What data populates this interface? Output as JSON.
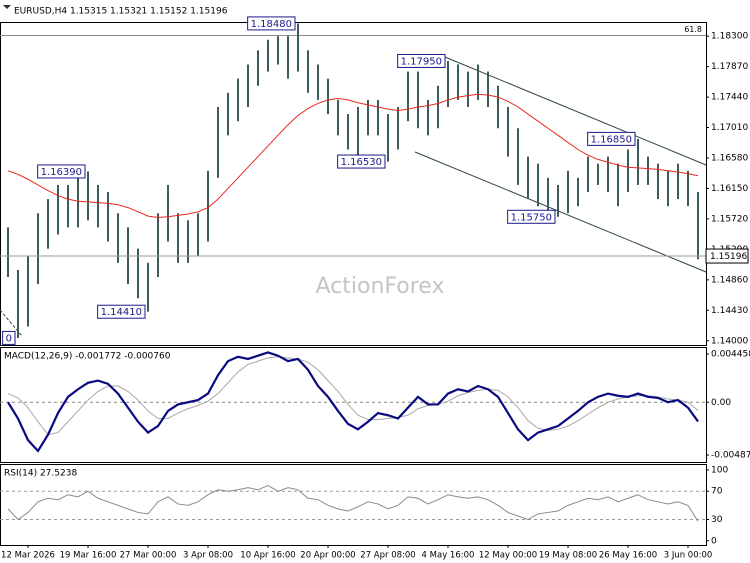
{
  "chart_data": [
    {
      "type": "ohlc",
      "title": "EURUSD,H4  1.15315 1.15321 1.15152 1.15196",
      "watermark": "ActionForex",
      "categories": [
        null,
        null,
        "12 Mar 2026",
        null,
        null,
        null,
        null,
        null,
        "19 Mar 16:00",
        null,
        null,
        null,
        null,
        null,
        "27 Mar 00:00",
        null,
        null,
        null,
        null,
        null,
        "3 Apr 08:00",
        null,
        null,
        null,
        null,
        null,
        "10 Apr 16:00",
        null,
        null,
        null,
        null,
        null,
        "20 Apr 00:00",
        null,
        null,
        null,
        null,
        null,
        "27 Apr 08:00",
        null,
        null,
        null,
        null,
        null,
        "4 May 16:00",
        null,
        null,
        null,
        null,
        null,
        "12 May 00:00",
        null,
        null,
        null,
        null,
        null,
        "19 May 08:00",
        null,
        null,
        null,
        null,
        null,
        "26 May 16:00",
        null,
        null,
        null,
        null,
        null,
        "3 Jun 00:00",
        null
      ],
      "high": [
        1.156,
        1.15,
        1.152,
        1.158,
        1.16,
        1.162,
        1.162,
        1.163,
        1.1639,
        1.162,
        1.161,
        1.158,
        1.156,
        1.153,
        1.151,
        1.158,
        1.162,
        1.158,
        1.157,
        1.158,
        1.164,
        1.173,
        1.175,
        1.177,
        1.179,
        1.181,
        1.1825,
        1.183,
        1.183,
        1.1848,
        1.181,
        1.179,
        1.177,
        1.174,
        1.172,
        1.173,
        1.174,
        1.174,
        1.172,
        1.173,
        1.178,
        1.178,
        1.174,
        1.176,
        1.1795,
        1.179,
        1.178,
        1.179,
        1.178,
        1.176,
        1.173,
        1.17,
        1.166,
        1.165,
        1.163,
        1.162,
        1.164,
        1.163,
        1.166,
        1.165,
        1.166,
        1.165,
        1.167,
        1.1685,
        1.166,
        1.165,
        1.164,
        1.165,
        1.164,
        1.161
      ],
      "low": [
        1.149,
        1.1404,
        1.142,
        1.148,
        1.153,
        1.155,
        1.156,
        1.156,
        1.157,
        1.156,
        1.154,
        1.151,
        1.148,
        1.146,
        1.1441,
        1.149,
        1.154,
        1.151,
        1.151,
        1.152,
        1.154,
        1.163,
        1.169,
        1.171,
        1.173,
        1.176,
        1.178,
        1.179,
        1.177,
        1.178,
        1.175,
        1.174,
        1.172,
        1.169,
        1.167,
        1.166,
        1.169,
        1.169,
        1.1653,
        1.167,
        1.171,
        1.17,
        1.169,
        1.17,
        1.173,
        1.174,
        1.173,
        1.174,
        1.173,
        1.17,
        1.166,
        1.162,
        1.16,
        1.159,
        1.158,
        1.1575,
        1.158,
        1.159,
        1.161,
        1.162,
        1.161,
        1.159,
        1.161,
        1.162,
        1.162,
        1.16,
        1.159,
        1.16,
        1.159,
        1.1515
      ],
      "color": "#3d5b5b",
      "ma": {
        "color": "#e8281e",
        "values": [
          1.164,
          1.1635,
          1.1628,
          1.162,
          1.1612,
          1.1605,
          1.16,
          1.1597,
          1.1596,
          1.1595,
          1.1594,
          1.1592,
          1.1588,
          1.1582,
          1.1576,
          1.1574,
          1.1575,
          1.1577,
          1.1579,
          1.1582,
          1.1588,
          1.16,
          1.1615,
          1.163,
          1.1645,
          1.166,
          1.1675,
          1.169,
          1.1705,
          1.1718,
          1.1728,
          1.1735,
          1.174,
          1.1742,
          1.174,
          1.1736,
          1.1733,
          1.173,
          1.1727,
          1.1725,
          1.1727,
          1.173,
          1.1732,
          1.1735,
          1.174,
          1.1744,
          1.1746,
          1.1748,
          1.1747,
          1.1744,
          1.1738,
          1.173,
          1.172,
          1.171,
          1.17,
          1.169,
          1.168,
          1.167,
          1.1662,
          1.1656,
          1.1652,
          1.1648,
          1.1645,
          1.1644,
          1.1643,
          1.1642,
          1.164,
          1.1638,
          1.1636,
          1.1633
        ]
      },
      "ylim": [
        1.1394,
        1.185
      ],
      "yticks": [
        {
          "value": 1.183,
          "label": "1.18300"
        },
        {
          "value": 1.1787,
          "label": "1.17870"
        },
        {
          "value": 1.1744,
          "label": "1.17440"
        },
        {
          "value": 1.1701,
          "label": "1.17010"
        },
        {
          "value": 1.1658,
          "label": "1.16580"
        },
        {
          "value": 1.1615,
          "label": "1.16150"
        },
        {
          "value": 1.1572,
          "label": "1.15720"
        },
        {
          "value": 1.1529,
          "label": "1.15290"
        },
        {
          "value": 1.1486,
          "label": "1.14860"
        },
        {
          "value": 1.1443,
          "label": "1.14430"
        },
        {
          "value": 1.14,
          "label": "1.14000"
        }
      ],
      "annotations": [
        {
          "value": 1.1404,
          "label": "0"
        },
        {
          "value": 1.1639,
          "label": "1.16390"
        },
        {
          "value": 1.1441,
          "label": "1.14410"
        },
        {
          "value": 1.1848,
          "label": "1.18480"
        },
        {
          "value": 1.1653,
          "label": "1.16530"
        },
        {
          "value": 1.1795,
          "label": "1.17950"
        },
        {
          "value": 1.1575,
          "label": "1.15750"
        },
        {
          "value": 1.1685,
          "label": "1.16850"
        }
      ],
      "fib_label": "61.8",
      "fib_price": 1.1831,
      "last_price": 1.15196
    },
    {
      "type": "macd",
      "title": "MACD(12,26,9) -0.001772 -0.000760",
      "macd": {
        "color": "#0a0a80",
        "values": [
          0.0,
          -0.0015,
          -0.0035,
          -0.0045,
          -0.003,
          -0.001,
          0.0005,
          0.0012,
          0.0018,
          0.002,
          0.0017,
          0.0008,
          -0.0005,
          -0.0018,
          -0.0028,
          -0.0022,
          -0.0008,
          -0.0002,
          0.0,
          0.0002,
          0.0008,
          0.0025,
          0.0038,
          0.0042,
          0.004,
          0.0043,
          0.0046,
          0.0043,
          0.0038,
          0.004,
          0.003,
          0.0015,
          0.0005,
          -0.0008,
          -0.002,
          -0.0025,
          -0.0018,
          -0.001,
          -0.0012,
          -0.0015,
          -0.0005,
          0.0005,
          -0.0002,
          -0.0002,
          0.0008,
          0.0012,
          0.001,
          0.0015,
          0.0012,
          0.0005,
          -0.001,
          -0.0025,
          -0.0035,
          -0.0028,
          -0.0025,
          -0.0022,
          -0.0015,
          -0.0008,
          0.0,
          0.0005,
          0.0008,
          0.0006,
          0.0005,
          0.0008,
          0.0005,
          0.0004,
          0.0,
          0.0002,
          -0.0005,
          -0.001772
        ]
      },
      "signal": {
        "color": "#a8a8a8",
        "values": [
          0.0008,
          0.0004,
          -0.0005,
          -0.0018,
          -0.003,
          -0.0028,
          -0.0018,
          -0.0008,
          0.0002,
          0.001,
          0.0015,
          0.0015,
          0.001,
          0.0002,
          -0.0008,
          -0.0015,
          -0.0015,
          -0.001,
          -0.0006,
          -0.0003,
          0.0001,
          0.0008,
          0.0018,
          0.0028,
          0.0035,
          0.0038,
          0.0041,
          0.0042,
          0.0041,
          0.004,
          0.0037,
          0.003,
          0.002,
          0.001,
          -0.0002,
          -0.0012,
          -0.0016,
          -0.0016,
          -0.0015,
          -0.0014,
          -0.0012,
          -0.0006,
          -0.0003,
          -0.0002,
          0.0001,
          0.0006,
          0.0009,
          0.0011,
          0.0012,
          0.0011,
          0.0005,
          -0.0005,
          -0.0017,
          -0.0024,
          -0.0026,
          -0.0025,
          -0.0022,
          -0.0017,
          -0.0011,
          -0.0005,
          0.0,
          0.0003,
          0.0005,
          0.0006,
          0.0006,
          0.0005,
          0.0003,
          0.0002,
          0.0,
          -0.00076
        ]
      },
      "ylim": [
        -0.00552,
        0.005012
      ],
      "yticks": [
        0.004458,
        {
          "value": 0,
          "label": "0.00"
        },
        -0.004872
      ]
    },
    {
      "type": "rsi",
      "title": "RSI(14) 27.5238",
      "color": "#8a8a8a",
      "values": [
        45,
        30,
        40,
        55,
        60,
        58,
        65,
        62,
        70,
        60,
        55,
        50,
        45,
        40,
        38,
        55,
        62,
        52,
        50,
        55,
        65,
        72,
        70,
        72,
        75,
        72,
        78,
        70,
        75,
        72,
        60,
        58,
        50,
        45,
        42,
        48,
        55,
        52,
        45,
        50,
        62,
        60,
        52,
        58,
        65,
        62,
        60,
        62,
        58,
        50,
        40,
        35,
        30,
        38,
        40,
        42,
        50,
        55,
        60,
        58,
        62,
        55,
        60,
        65,
        58,
        55,
        52,
        55,
        50,
        27.5238
      ],
      "ylim": [
        -6,
        107
      ],
      "yticks": [
        100,
        70,
        30,
        0
      ],
      "levels": [
        70,
        30
      ]
    }
  ]
}
